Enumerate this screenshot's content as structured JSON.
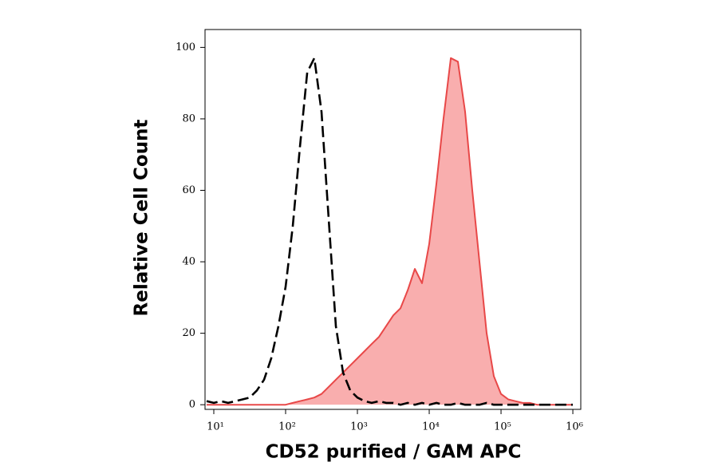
{
  "chart_data": {
    "type": "histogram-line",
    "x_label": "CD52 purified / GAM APC",
    "y_label": "Relative Cell Count",
    "x_scale": "log",
    "xlim": [
      7.55,
      1290000
    ],
    "ylim": [
      -1.3,
      105
    ],
    "xticks": [
      {
        "value": 10,
        "label": "10¹"
      },
      {
        "value": 100,
        "label": "10²"
      },
      {
        "value": 1000,
        "label": "10³"
      },
      {
        "value": 10000,
        "label": "10⁴"
      },
      {
        "value": 100000,
        "label": "10⁵"
      },
      {
        "value": 1000000,
        "label": "10⁶"
      }
    ],
    "yticks": [
      0,
      20,
      40,
      60,
      80,
      100
    ],
    "x": [
      7.94,
      10,
      12.6,
      15.8,
      20,
      25.1,
      31.6,
      39.8,
      50.1,
      63.1,
      79.4,
      100,
      126,
      158,
      200,
      251,
      316,
      398,
      501,
      631,
      794,
      1000,
      1260,
      1580,
      2000,
      2510,
      3160,
      3980,
      5010,
      6310,
      7940,
      10000,
      12600,
      15800,
      20000,
      25100,
      31600,
      39800,
      50100,
      63100,
      79400,
      100000,
      126000,
      158000,
      200000,
      251000,
      316000,
      398000,
      501000,
      631000,
      794000,
      1000000
    ],
    "series": [
      {
        "color": "#e84848",
        "fill": "#f9aeae",
        "style": "filled",
        "values": [
          0,
          0,
          0,
          0,
          0,
          0,
          0,
          0,
          0,
          0,
          0,
          0,
          0.5,
          1,
          1.5,
          2,
          3,
          5,
          7,
          9,
          11,
          13,
          15,
          17,
          19,
          22,
          25,
          27,
          32,
          38,
          34,
          45,
          62,
          80,
          97,
          96,
          82,
          60,
          40,
          20,
          8,
          3,
          1.5,
          1,
          0.5,
          0.5,
          0,
          0,
          0,
          0,
          0,
          0
        ]
      },
      {
        "color": "#000000",
        "style": "dashed",
        "values": [
          1,
          0.5,
          1,
          0.5,
          1,
          1.5,
          2,
          4,
          7,
          13,
          22,
          33,
          50,
          72,
          93,
          97,
          82,
          52,
          22,
          9,
          4,
          2,
          1,
          0.5,
          1,
          0.5,
          0.5,
          0,
          0.5,
          0,
          0.5,
          0,
          0.5,
          0,
          0,
          0.5,
          0,
          0,
          0,
          0.5,
          0,
          0,
          0,
          0,
          0,
          0,
          0,
          0,
          0,
          0,
          0,
          0
        ]
      }
    ]
  }
}
